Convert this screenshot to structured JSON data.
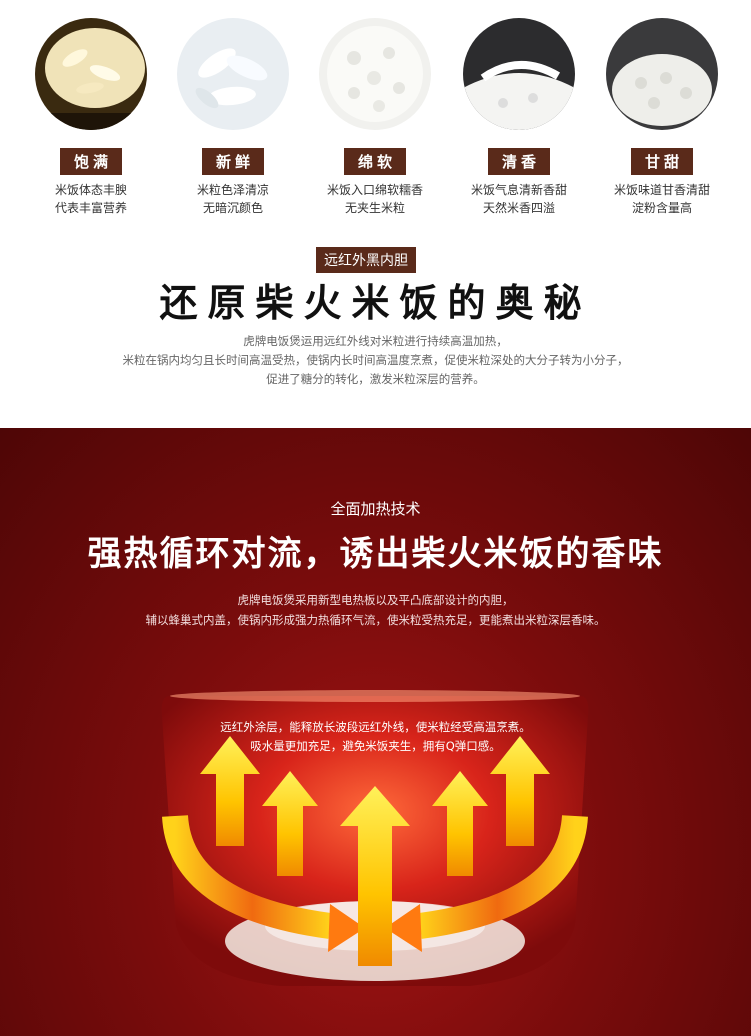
{
  "features": [
    {
      "name": "饱满",
      "line1": "米饭体态丰腴",
      "line2": "代表丰富营养"
    },
    {
      "name": "新鲜",
      "line1": "米粒色泽清凉",
      "line2": "无暗沉颜色"
    },
    {
      "name": "绵软",
      "line1": "米饭入口绵软糯香",
      "line2": "无夹生米粒"
    },
    {
      "name": "清香",
      "line1": "米饭气息清新香甜",
      "line2": "天然米香四溢"
    },
    {
      "name": "甘甜",
      "line1": "米饭味道甘香清甜",
      "line2": "淀粉含量高"
    }
  ],
  "infrared": {
    "tag": "远红外黑内胆",
    "title": "还原柴火米饭的奥秘",
    "lines": [
      "虎牌电饭煲运用远红外线对米粒进行持续高温加热，",
      "米粒在锅内均匀且长时间高温受热，使锅内长时间高温度烹煮，促使米粒深处的大分子转为小分子，",
      "促进了糖分的转化，激发米粒深层的营养。"
    ]
  },
  "heating": {
    "tag": "全面加热技术",
    "title": "强热循环对流，诱出柴火米饭的香味",
    "lines": [
      "虎牌电饭煲采用新型电热板以及平凸底部设计的内胆，",
      "辅以蜂巢式内盖，使锅内形成强力热循环气流，使米粒受热充足，更能煮出米粒深层香味。"
    ],
    "pot_lines": [
      "远红外涂层，能释放长波段远红外线，使米粒经受高温烹煮。",
      "吸水量更加充足，避免米饭夹生，拥有Q弹口感。"
    ]
  },
  "colors": {
    "badge": "#5a2a1a",
    "red_bg": "#7a0c0c",
    "arrow": "#ffd21a"
  }
}
